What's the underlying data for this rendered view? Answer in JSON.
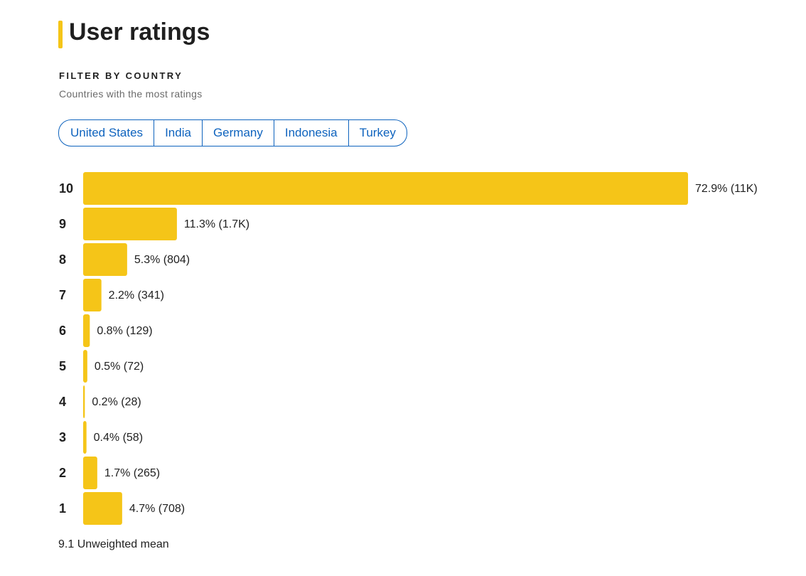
{
  "header": {
    "title": "User ratings"
  },
  "filter": {
    "heading": "FILTER BY COUNTRY",
    "subheading": "Countries with the most ratings",
    "countries": [
      "United States",
      "India",
      "Germany",
      "Indonesia",
      "Turkey"
    ]
  },
  "chart_data": {
    "type": "bar",
    "orientation": "horizontal",
    "categories": [
      "10",
      "9",
      "8",
      "7",
      "6",
      "5",
      "4",
      "3",
      "2",
      "1"
    ],
    "values": [
      72.9,
      11.3,
      5.3,
      2.2,
      0.8,
      0.5,
      0.2,
      0.4,
      1.7,
      4.7
    ],
    "value_labels": [
      "72.9% (11K)",
      "11.3% (1.7K)",
      "5.3% (804)",
      "2.2% (341)",
      "0.8% (129)",
      "0.5% (72)",
      "0.2% (28)",
      "0.4% (58)",
      "1.7% (265)",
      "4.7% (708)"
    ],
    "color": "#f5c518"
  },
  "footer": {
    "mean": "9.1 Unweighted mean"
  }
}
